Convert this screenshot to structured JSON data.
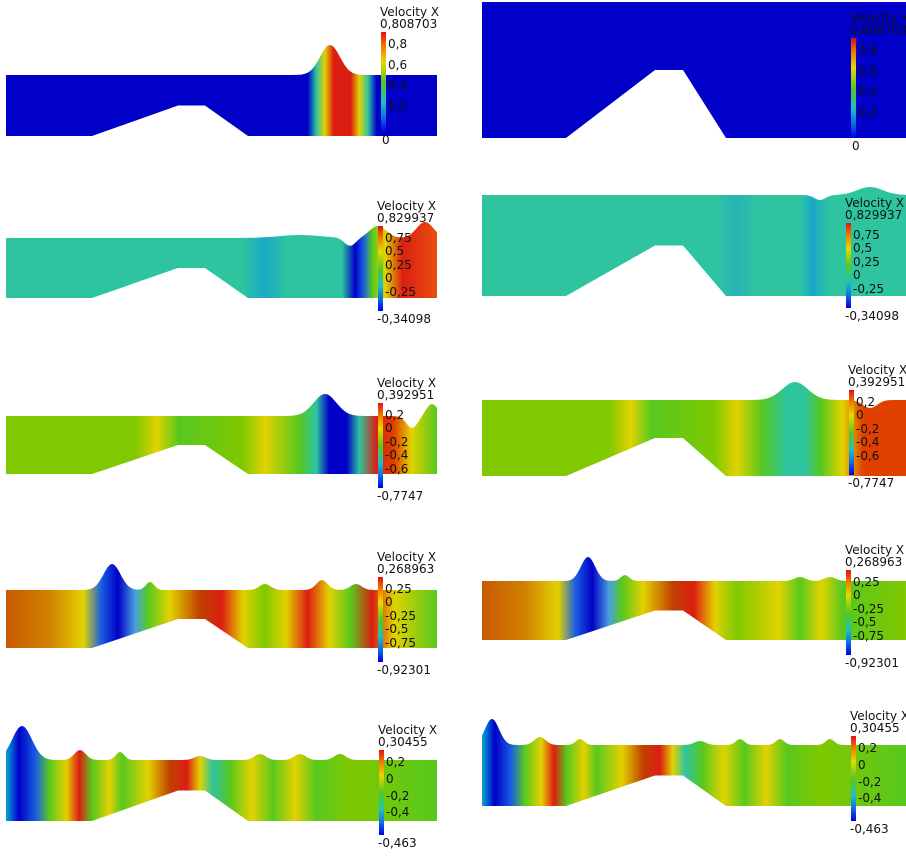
{
  "colorbars": [
    {
      "title": "Velocity X",
      "max": "0,808703",
      "min": "0",
      "ticks": [
        "0,8",
        "0,6",
        "0,4",
        "0,2"
      ]
    },
    {
      "title": "Velocity X",
      "max": "0,829937",
      "min": "-0,34098",
      "ticks": [
        "0,75",
        "0,5",
        "0,25",
        "0",
        "-0,25"
      ]
    },
    {
      "title": "Velocity X",
      "max": "0,392951",
      "min": "-0,7747",
      "ticks": [
        "0,2",
        "0",
        "-0,2",
        "-0,4",
        "-0,6"
      ]
    },
    {
      "title": "Velocity X",
      "max": "0,268963",
      "min": "-0,92301",
      "ticks": [
        "0,25",
        "0",
        "-0,25",
        "-0,5",
        "-0,75"
      ]
    },
    {
      "title": "Velocity X",
      "max": "0,30455",
      "min": "-0,463",
      "ticks": [
        "0,2",
        "0",
        "-0,2",
        "-0,4"
      ]
    }
  ],
  "colors": {
    "low": "#0000c8",
    "mid": "#2ec4a0",
    "green": "#58c81e",
    "yellow": "#e2d200",
    "high": "#dc1e12"
  }
}
